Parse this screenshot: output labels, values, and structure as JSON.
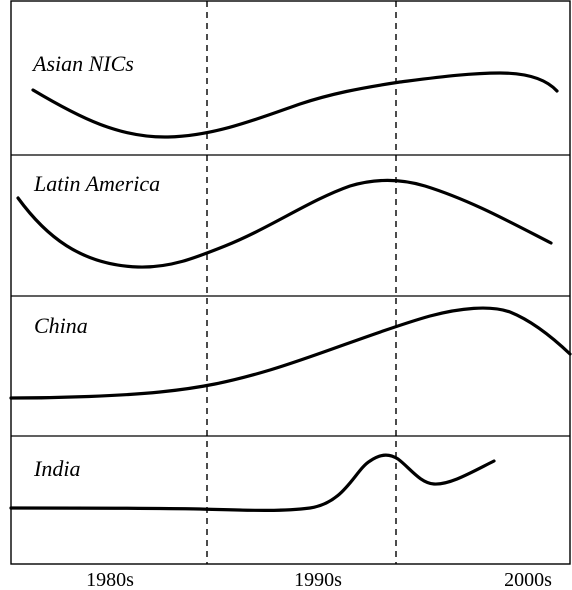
{
  "panels": [
    {
      "label": "Asian NICs"
    },
    {
      "label": "Latin America"
    },
    {
      "label": "China"
    },
    {
      "label": "India"
    }
  ],
  "x_axis": {
    "ticks": [
      "1980s",
      "1990s",
      "2000s"
    ]
  },
  "colors": {
    "ink": "#000000",
    "background": "#ffffff"
  }
}
